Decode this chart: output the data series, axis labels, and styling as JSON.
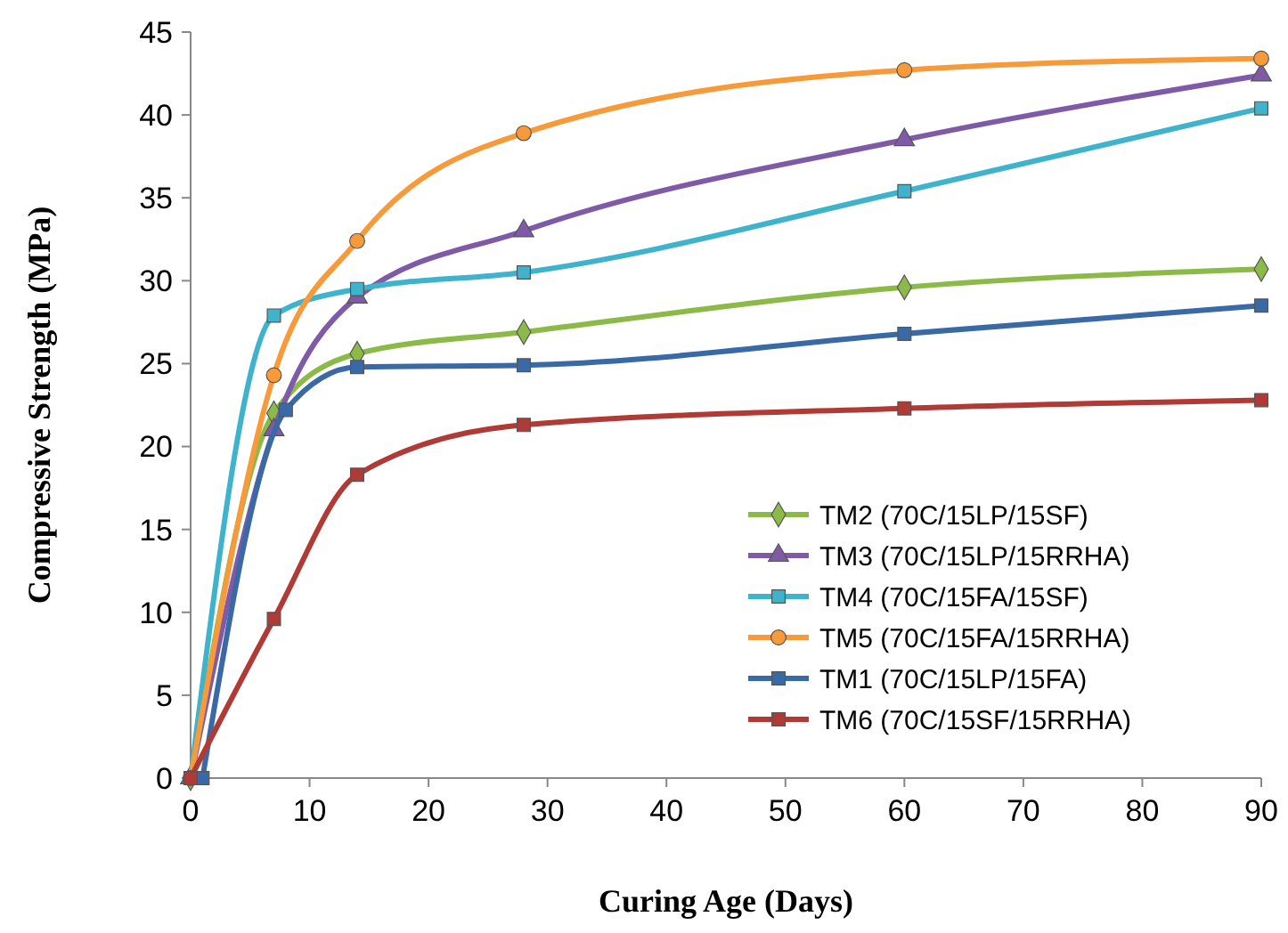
{
  "chart_data": {
    "type": "line",
    "xlabel": "Curing  Age (Days)",
    "ylabel": "Compressive Strength (MPa)",
    "xlim": [
      0,
      90
    ],
    "xticks": [
      0,
      10,
      20,
      30,
      40,
      50,
      60,
      70,
      80,
      90
    ],
    "ylim": [
      0,
      45
    ],
    "yticks": [
      0,
      5,
      10,
      15,
      20,
      25,
      30,
      35,
      40,
      45
    ],
    "grid": false,
    "legend": "bottom right",
    "line_style": "solid",
    "series": [
      {
        "name": "TM2 (70C/15LP/15SF)",
        "color": "#8cba48",
        "marker": "diamond",
        "x": [
          0,
          7,
          14,
          28,
          60,
          90
        ],
        "values": [
          0,
          22,
          25.6,
          26.9,
          29.6,
          30.7
        ]
      },
      {
        "name": "TM3 (70C/15LP/15RRHA)",
        "color": "#7f5aa6",
        "marker": "triangle",
        "x": [
          0,
          7,
          14,
          28,
          60,
          90
        ],
        "values": [
          0,
          21,
          29,
          33,
          38.5,
          42.4
        ]
      },
      {
        "name": "TM4 (70C/15FA/15SF)",
        "color": "#3fb3cc",
        "marker": "square",
        "x": [
          0,
          7,
          14,
          28,
          60,
          90
        ],
        "values": [
          0,
          27.9,
          29.5,
          30.5,
          35.4,
          40.4
        ]
      },
      {
        "name": "TM5 (70C/15FA/15RRHA)",
        "color": "#f79a3a",
        "marker": "circle",
        "x": [
          0,
          7,
          14,
          28,
          60,
          90
        ],
        "values": [
          0,
          24.3,
          32.4,
          38.9,
          42.7,
          43.4
        ]
      },
      {
        "name": "TM1 (70C/15LP/15FA)",
        "color": "#3a6aa6",
        "marker": "square",
        "x": [
          1,
          8,
          14,
          28,
          60,
          90
        ],
        "values": [
          0,
          22.2,
          24.8,
          24.9,
          26.8,
          28.5
        ]
      },
      {
        "name": "TM6 (70C/15SF/15RRHA)",
        "color": "#b03a36",
        "marker": "square",
        "x": [
          0,
          7,
          14,
          28,
          60,
          90
        ],
        "values": [
          0,
          9.6,
          18.3,
          21.3,
          22.3,
          22.8
        ]
      }
    ]
  }
}
